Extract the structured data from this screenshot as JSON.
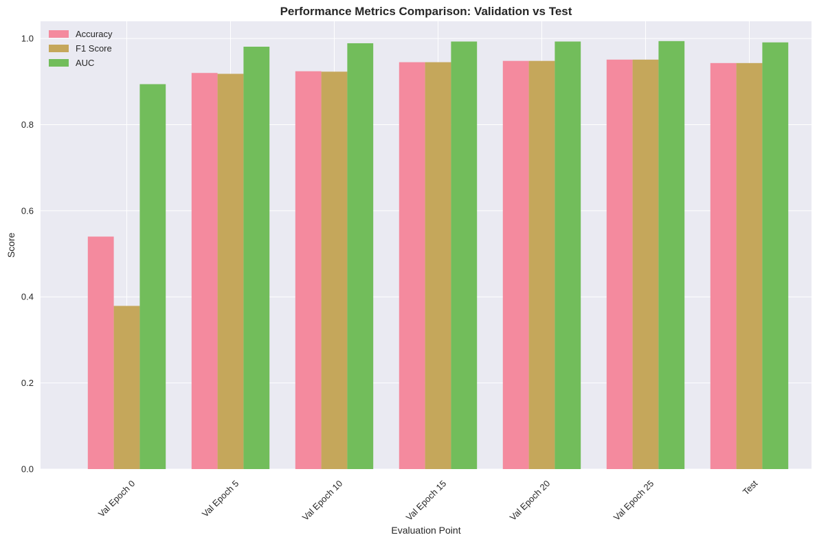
{
  "chart_data": {
    "type": "bar",
    "title": "Performance Metrics Comparison: Validation vs Test",
    "xlabel": "Evaluation Point",
    "ylabel": "Score",
    "categories": [
      "Val Epoch 0",
      "Val Epoch 5",
      "Val Epoch 10",
      "Val Epoch 15",
      "Val Epoch 20",
      "Val Epoch 25",
      "Test"
    ],
    "series": [
      {
        "name": "Accuracy",
        "color": "#f48a9e",
        "values": [
          0.54,
          0.92,
          0.924,
          0.945,
          0.948,
          0.951,
          0.943
        ]
      },
      {
        "name": "F1 Score",
        "color": "#c5a75b",
        "values": [
          0.379,
          0.918,
          0.923,
          0.945,
          0.948,
          0.951,
          0.943
        ]
      },
      {
        "name": "AUC",
        "color": "#72bd5b",
        "values": [
          0.894,
          0.981,
          0.989,
          0.993,
          0.993,
          0.994,
          0.991
        ]
      }
    ],
    "ylim": [
      0,
      1.04
    ],
    "yticks": [
      0.0,
      0.2,
      0.4,
      0.6,
      0.8,
      1.0
    ],
    "ytick_labels": [
      "0.0",
      "0.2",
      "0.4",
      "0.6",
      "0.8",
      "1.0"
    ],
    "grid": true,
    "legend_position": "top-left",
    "background_color": "#eaeaf2",
    "grid_color": "#ffffff"
  }
}
